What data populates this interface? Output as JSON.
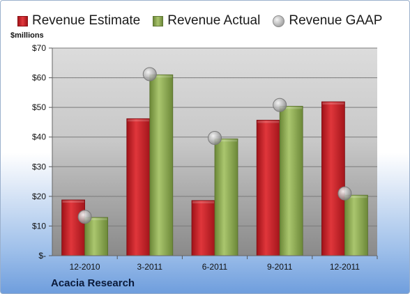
{
  "chart_data": {
    "type": "bar",
    "ylabel": "$millions",
    "ylim": [
      0,
      70
    ],
    "yticks": [
      "$-",
      "$10",
      "$20",
      "$30",
      "$40",
      "$50",
      "$60",
      "$70"
    ],
    "categories": [
      "12-2010",
      "3-2011",
      "6-2011",
      "9-2011",
      "12-2011"
    ],
    "series": [
      {
        "name": "Revenue Estimate",
        "kind": "bar",
        "color": "#cc1f25",
        "values": [
          18.8,
          46.2,
          18.6,
          45.7,
          51.9
        ]
      },
      {
        "name": "Revenue Actual",
        "kind": "bar",
        "color": "#8ea853",
        "values": [
          12.9,
          61.0,
          39.4,
          50.4,
          20.4
        ]
      },
      {
        "name": "Revenue GAAP",
        "kind": "marker",
        "color": "#b5b5b5",
        "values": [
          13.1,
          61.2,
          39.7,
          50.8,
          21.0
        ]
      }
    ],
    "legend_position": "top",
    "grid": true
  },
  "company": "Acacia Research"
}
